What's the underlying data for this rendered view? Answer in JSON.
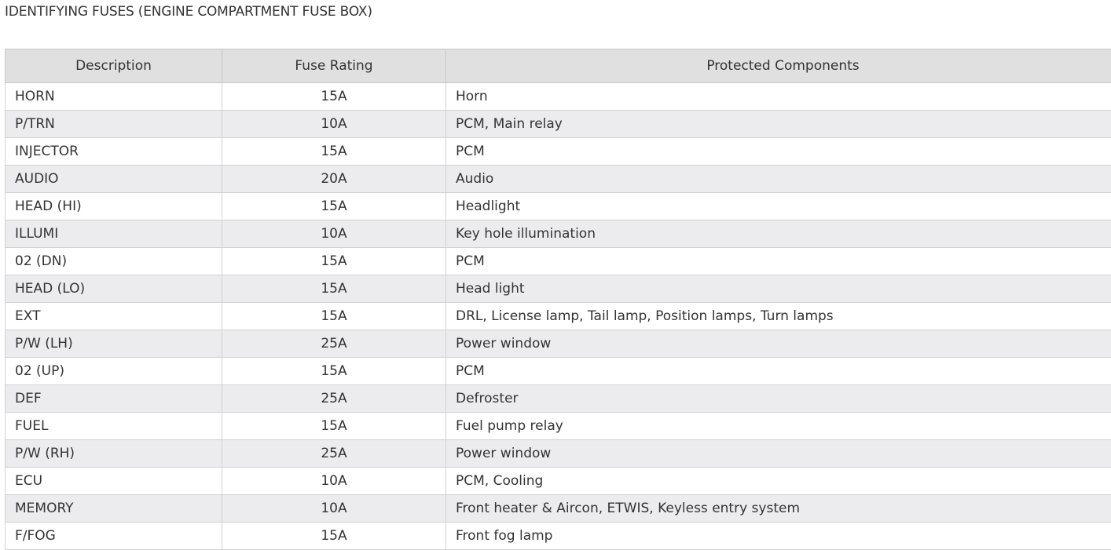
{
  "header": {
    "title": "IDENTIFYING FUSES (ENGINE COMPARTMENT FUSE BOX)"
  },
  "table": {
    "columns": [
      "Description",
      "Fuse Rating",
      "Protected Components"
    ],
    "rows": [
      [
        "HORN",
        "15A",
        "Horn"
      ],
      [
        "P/TRN",
        "10A",
        "PCM, Main relay"
      ],
      [
        "INJECTOR",
        "15A",
        "PCM"
      ],
      [
        "AUDIO",
        "20A",
        "Audio"
      ],
      [
        "HEAD (HI)",
        "15A",
        "Headlight"
      ],
      [
        "ILLUMI",
        "10A",
        "Key hole illumination"
      ],
      [
        "02 (DN)",
        "15A",
        "PCM"
      ],
      [
        "HEAD (LO)",
        "15A",
        "Head light"
      ],
      [
        "EXT",
        "15A",
        "DRL, License lamp, Tail lamp, Position lamps, Turn lamps"
      ],
      [
        "P/W (LH)",
        "25A",
        "Power window"
      ],
      [
        "02 (UP)",
        "15A",
        "PCM"
      ],
      [
        "DEF",
        "25A",
        "Defroster"
      ],
      [
        "FUEL",
        "15A",
        "Fuel pump relay"
      ],
      [
        "P/W (RH)",
        "25A",
        "Power window"
      ],
      [
        "ECU",
        "10A",
        "PCM, Cooling"
      ],
      [
        "MEMORY",
        "10A",
        "Front heater & Aircon, ETWIS, Keyless entry system"
      ],
      [
        "F/FOG",
        "15A",
        "Front fog lamp"
      ]
    ]
  }
}
